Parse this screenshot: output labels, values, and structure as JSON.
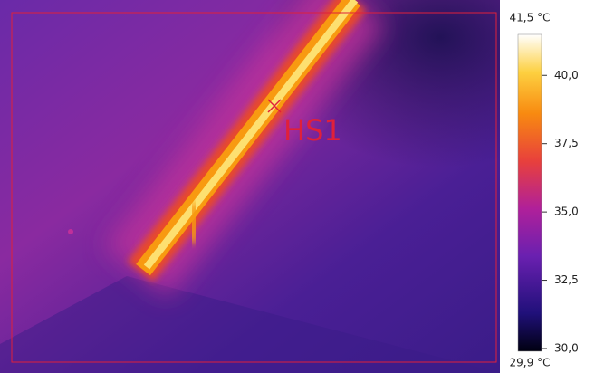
{
  "scale": {
    "max": {
      "value": 41.5,
      "label": "41,5 °C"
    },
    "min": {
      "value": 29.9,
      "label": "29,9 °C"
    },
    "ticks": [
      {
        "value": 40.0,
        "label": "40,0"
      },
      {
        "value": 37.5,
        "label": "37,5"
      },
      {
        "value": 35.0,
        "label": "35,0"
      },
      {
        "value": 32.5,
        "label": "32,5"
      },
      {
        "value": 30.0,
        "label": "30,0"
      }
    ]
  },
  "markers": [
    {
      "label": "HS1"
    }
  ]
}
